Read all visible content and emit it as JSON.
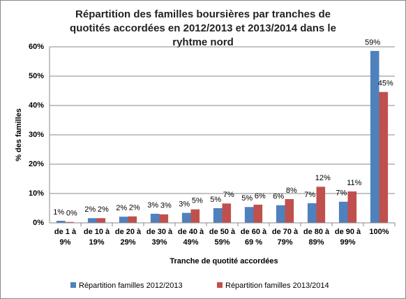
{
  "chart_data": {
    "type": "bar",
    "title": "Répartition des familles boursières par tranches de quotités accordées en 2012/2013 et 2013/2014 dans le ryhtme nord",
    "x_label": "Tranche de quotité accordées",
    "y_label": "% des familles",
    "categories": [
      "de 1 à\n9%",
      "de 10 à\n19%",
      "de 20 à\n29%",
      "de 30 à\n39%",
      "de 40 à\n49%",
      "de 50 à\n59%",
      "de 60 à\n69 %",
      "de 70 à\n79%",
      "de 80 à\n89%",
      "de 90 à\n99%",
      "100%"
    ],
    "series": [
      {
        "name": "Répartition familles 2012/2013",
        "color": "#4f81bd",
        "values": [
          0.7,
          1.6,
          2.1,
          3.1,
          3.4,
          5.0,
          5.4,
          6.0,
          6.7,
          7.2,
          58.6
        ],
        "value_labels": [
          "1%",
          "2%",
          "2%",
          "3%",
          "3%",
          "5%",
          "5%",
          "6%",
          "7%",
          "7%",
          "59%"
        ]
      },
      {
        "name": "Répartition familles 2013/2014",
        "color": "#c0504d",
        "values": [
          0.3,
          1.6,
          2.2,
          2.9,
          4.6,
          6.6,
          6.2,
          8.1,
          12.3,
          10.7,
          44.6
        ],
        "value_labels": [
          "0%",
          "2%",
          "2%",
          "3%",
          "5%",
          "7%",
          "6%",
          "8%",
          "12%",
          "11%",
          "45%"
        ]
      }
    ],
    "ylim": [
      0,
      60
    ],
    "yticks": [
      {
        "value": 0,
        "label": "0%"
      },
      {
        "value": 10,
        "label": "10%"
      },
      {
        "value": 20,
        "label": "20%"
      },
      {
        "value": 30,
        "label": "30%"
      },
      {
        "value": 40,
        "label": "40%"
      },
      {
        "value": 50,
        "label": "50%"
      },
      {
        "value": 60,
        "label": "60%"
      }
    ],
    "grid": true,
    "legend": "bottom"
  }
}
